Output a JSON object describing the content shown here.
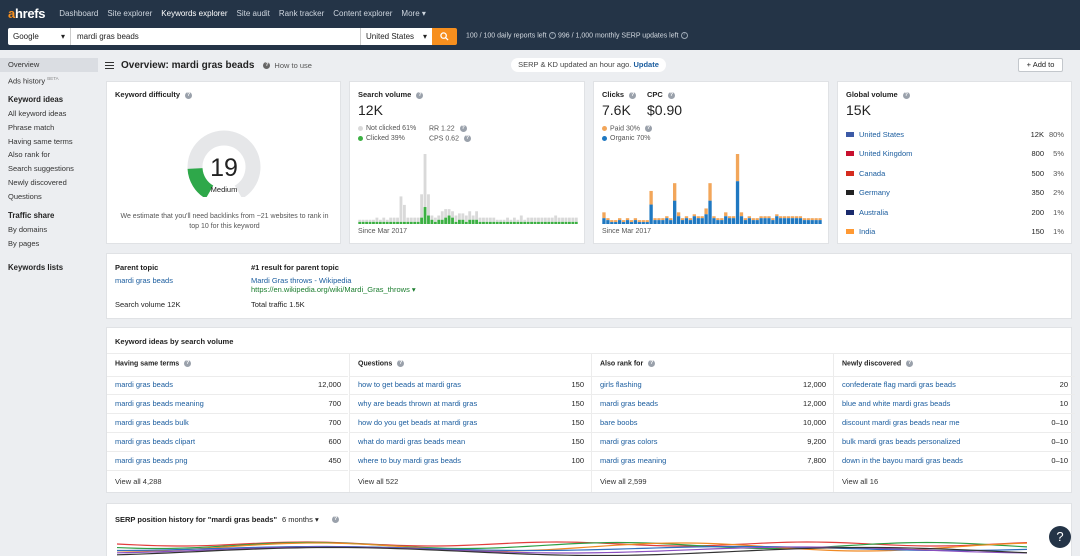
{
  "nav": {
    "logo_a": "a",
    "logo_rest": "hrefs",
    "items": [
      "Dashboard",
      "Site explorer",
      "Keywords explorer",
      "Site audit",
      "Rank tracker",
      "Content explorer",
      "More"
    ]
  },
  "search": {
    "engine": "Google",
    "keyword": "mardi gras beads",
    "country": "United States",
    "daily_reports": "100 / 100 daily reports left",
    "serp_updates": "996 / 1,000 monthly SERP updates left"
  },
  "sidebar": {
    "top": [
      "Overview",
      "Ads history"
    ],
    "ads_badge": "BETA",
    "kw_ideas_head": "Keyword ideas",
    "kw_ideas": [
      "All keyword ideas",
      "Phrase match",
      "Having same terms",
      "Also rank for",
      "Search suggestions",
      "Newly discovered",
      "Questions"
    ],
    "traffic_head": "Traffic share",
    "traffic": [
      "By domains",
      "By pages"
    ],
    "lists_head": "Keywords lists"
  },
  "overview": {
    "title": "Overview: mardi gras beads",
    "how_to": "How to use",
    "serp_note": "SERP & KD updated an hour ago.",
    "update": "Update",
    "add_to": "Add to"
  },
  "kd": {
    "title": "Keyword difficulty",
    "value": "19",
    "label": "Medium",
    "fill": 0.19,
    "note": "We estimate that you'll need backlinks from ~21 websites to rank in top 10 for this keyword",
    "colors": {
      "fill": "#2ea84a",
      "track": "#e6e7e9"
    }
  },
  "volume": {
    "title": "Search volume",
    "value": "12K",
    "not_clicked": "Not clicked 61%",
    "clicked": "Clicked 39%",
    "rr": "RR 1.22",
    "cps": "CPS 0.62",
    "since": "Since Mar 2017",
    "colors": {
      "clicked": "#3cb043",
      "not_clicked": "#d9d9d9"
    },
    "bars_total": [
      2,
      2,
      2,
      2,
      2,
      3,
      2,
      3,
      2,
      3,
      3,
      3,
      13,
      9,
      3,
      3,
      3,
      3,
      14,
      33,
      14,
      4,
      3,
      4,
      6,
      7,
      7,
      6,
      4,
      5,
      5,
      4,
      6,
      4,
      6,
      3,
      3,
      3,
      3,
      3,
      2,
      2,
      2,
      3,
      2,
      3,
      2,
      4,
      2,
      3,
      3,
      3,
      3,
      3,
      3,
      3,
      3,
      4,
      3,
      3,
      3,
      3,
      3,
      3
    ],
    "bars_clicked": [
      1,
      1,
      1,
      1,
      1,
      1,
      1,
      1,
      1,
      1,
      1,
      1,
      1,
      1,
      1,
      1,
      1,
      1,
      3,
      8,
      4,
      2,
      1,
      2,
      2,
      3,
      4,
      3,
      1,
      2,
      2,
      1,
      2,
      2,
      2,
      1,
      1,
      1,
      1,
      1,
      1,
      1,
      1,
      1,
      1,
      1,
      1,
      1,
      1,
      1,
      1,
      1,
      1,
      1,
      1,
      1,
      1,
      1,
      1,
      1,
      1,
      1,
      1,
      1
    ]
  },
  "clicks": {
    "title": "Clicks",
    "value": "7.6K",
    "cpc_title": "CPC",
    "cpc_value": "$0.90",
    "paid": "Paid 30%",
    "organic": "Organic 70%",
    "since": "Since Mar 2017",
    "colors": {
      "paid": "#f2a65a",
      "organic": "#1f78c1"
    },
    "bars_organic": [
      3,
      2,
      1,
      1,
      2,
      1,
      2,
      1,
      2,
      1,
      1,
      1,
      10,
      2,
      2,
      2,
      3,
      2,
      12,
      4,
      2,
      3,
      2,
      4,
      3,
      3,
      5,
      12,
      3,
      2,
      2,
      4,
      3,
      3,
      22,
      4,
      2,
      3,
      2,
      2,
      3,
      3,
      3,
      2,
      4,
      3,
      3,
      3,
      3,
      3,
      3,
      2,
      2,
      2,
      2,
      2
    ],
    "bars_paid": [
      3,
      1,
      1,
      1,
      1,
      1,
      1,
      1,
      1,
      1,
      1,
      1,
      7,
      1,
      1,
      1,
      1,
      1,
      9,
      2,
      1,
      1,
      1,
      1,
      1,
      1,
      3,
      9,
      1,
      1,
      1,
      2,
      1,
      1,
      14,
      2,
      1,
      1,
      1,
      1,
      1,
      1,
      1,
      1,
      1,
      1,
      1,
      1,
      1,
      1,
      1,
      1,
      1,
      1,
      1,
      1
    ]
  },
  "global": {
    "title": "Global volume",
    "value": "15K",
    "countries": [
      {
        "name": "United States",
        "vol": "12K",
        "pct": "80%",
        "flag": "us"
      },
      {
        "name": "United Kingdom",
        "vol": "800",
        "pct": "5%",
        "flag": "uk"
      },
      {
        "name": "Canada",
        "vol": "500",
        "pct": "3%",
        "flag": "ca"
      },
      {
        "name": "Germany",
        "vol": "350",
        "pct": "2%",
        "flag": "de"
      },
      {
        "name": "Australia",
        "vol": "200",
        "pct": "1%",
        "flag": "au"
      },
      {
        "name": "India",
        "vol": "150",
        "pct": "1%",
        "flag": "in"
      }
    ]
  },
  "parent": {
    "title": "Parent topic",
    "topic": "mardi gras beads",
    "volume": "Search volume 12K",
    "result_title": "#1 result for parent topic",
    "result_link": "Mardi Gras throws - Wikipedia",
    "result_url": "https://en.wikipedia.org/wiki/Mardi_Gras_throws",
    "traffic": "Total traffic 1.5K"
  },
  "ideas": {
    "title": "Keyword ideas by search volume",
    "columns": [
      {
        "head": "Having same terms",
        "view_all": "View all 4,288",
        "rows": [
          [
            "mardi gras beads",
            "12,000"
          ],
          [
            "mardi gras beads meaning",
            "700"
          ],
          [
            "mardi gras beads bulk",
            "700"
          ],
          [
            "mardi gras beads clipart",
            "600"
          ],
          [
            "mardi gras beads png",
            "450"
          ]
        ]
      },
      {
        "head": "Questions",
        "view_all": "View all 522",
        "rows": [
          [
            "how to get beads at mardi gras",
            "150"
          ],
          [
            "why are beads thrown at mardi gras",
            "150"
          ],
          [
            "how do you get beads at mardi gras",
            "150"
          ],
          [
            "what do mardi gras beads mean",
            "150"
          ],
          [
            "where to buy mardi gras beads",
            "100"
          ]
        ]
      },
      {
        "head": "Also rank for",
        "view_all": "View all 2,599",
        "rows": [
          [
            "girls flashing",
            "12,000"
          ],
          [
            "mardi gras beads",
            "12,000"
          ],
          [
            "bare boobs",
            "10,000"
          ],
          [
            "mardi gras colors",
            "9,200"
          ],
          [
            "mardi gras meaning",
            "7,800"
          ]
        ]
      },
      {
        "head": "Newly discovered",
        "view_all": "View all 16",
        "rows": [
          [
            "confederate flag mardi gras beads",
            "20"
          ],
          [
            "blue and white mardi gras beads",
            "10"
          ],
          [
            "discount mardi gras beads near me",
            "0–10"
          ],
          [
            "bulk mardi gras beads personalized",
            "0–10"
          ],
          [
            "down in the bayou mardi gras beads",
            "0–10"
          ]
        ]
      }
    ]
  },
  "serp_history": {
    "title": "SERP position history for \"mardi gras beads\"",
    "period": "6 months",
    "colors": [
      "#e23d3d",
      "#2e9e44",
      "#f08a24",
      "#2f6fbf",
      "#8a4fbf",
      "#333333"
    ]
  },
  "help_label": "?"
}
